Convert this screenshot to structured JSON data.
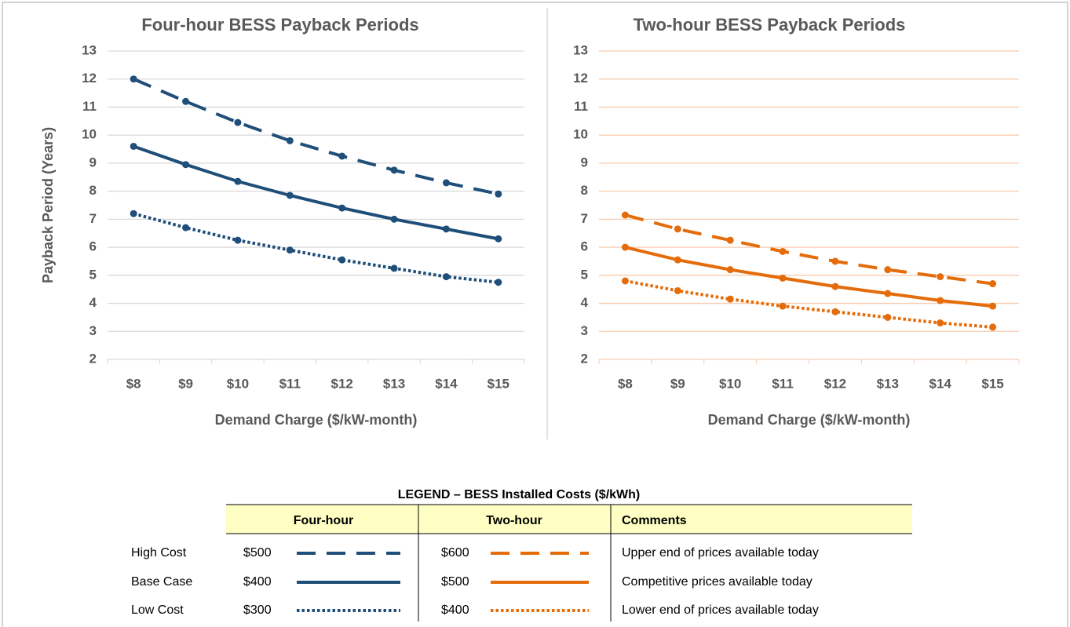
{
  "chart_data": [
    {
      "type": "line",
      "title": "Four-hour BESS Payback Periods",
      "ylabel": "Payback Period (Years)",
      "xlabel": "Demand Charge ($/kW-month)",
      "categories": [
        "$8",
        "$9",
        "$10",
        "$11",
        "$12",
        "$13",
        "$14",
        "$15"
      ],
      "ylim": [
        2,
        13
      ],
      "yticks": [
        2,
        3,
        4,
        5,
        6,
        7,
        8,
        9,
        10,
        11,
        12,
        13
      ],
      "grid": true,
      "grid_color": "#d9d9d9",
      "series": [
        {
          "color": "#1f4e79",
          "dash": "dashed",
          "values": [
            12.0,
            11.2,
            10.45,
            9.8,
            9.25,
            8.75,
            8.3,
            7.9
          ]
        },
        {
          "color": "#1f4e79",
          "dash": "solid",
          "values": [
            9.6,
            8.95,
            8.35,
            7.85,
            7.4,
            7.0,
            6.65,
            6.3
          ]
        },
        {
          "color": "#1f4e79",
          "dash": "dotted",
          "values": [
            7.2,
            6.7,
            6.25,
            5.9,
            5.55,
            5.25,
            4.95,
            4.75
          ]
        }
      ]
    },
    {
      "type": "line",
      "title": "Two-hour BESS Payback Periods",
      "xlabel": "Demand Charge ($/kW-month)",
      "categories": [
        "$8",
        "$9",
        "$10",
        "$11",
        "$12",
        "$13",
        "$14",
        "$15"
      ],
      "ylim": [
        2,
        13
      ],
      "yticks": [
        2,
        3,
        4,
        5,
        6,
        7,
        8,
        9,
        10,
        11,
        12,
        13
      ],
      "grid": true,
      "grid_color": "#f8cbad",
      "series": [
        {
          "color": "#e46c0a",
          "dash": "dashed",
          "values": [
            7.15,
            6.65,
            6.25,
            5.85,
            5.5,
            5.2,
            4.95,
            4.7
          ]
        },
        {
          "color": "#e46c0a",
          "dash": "solid",
          "values": [
            6.0,
            5.55,
            5.2,
            4.9,
            4.6,
            4.35,
            4.1,
            3.9
          ]
        },
        {
          "color": "#e46c0a",
          "dash": "dotted",
          "values": [
            4.8,
            4.45,
            4.15,
            3.9,
            3.7,
            3.5,
            3.3,
            3.15
          ]
        }
      ]
    }
  ],
  "legend": {
    "title": "LEGEND – BESS Installed Costs ($/kWh)",
    "headers": [
      "Four-hour",
      "Two-hour",
      "Comments"
    ],
    "rows": [
      {
        "label": "High Cost",
        "four_hour": "$500",
        "two_hour": "$600",
        "comment": "Upper end of prices available today"
      },
      {
        "label": "Base Case",
        "four_hour": "$400",
        "two_hour": "$500",
        "comment": "Competitive prices available today"
      },
      {
        "label": "Low Cost",
        "four_hour": "$300",
        "two_hour": "$400",
        "comment": "Lower end of prices available today"
      }
    ]
  }
}
